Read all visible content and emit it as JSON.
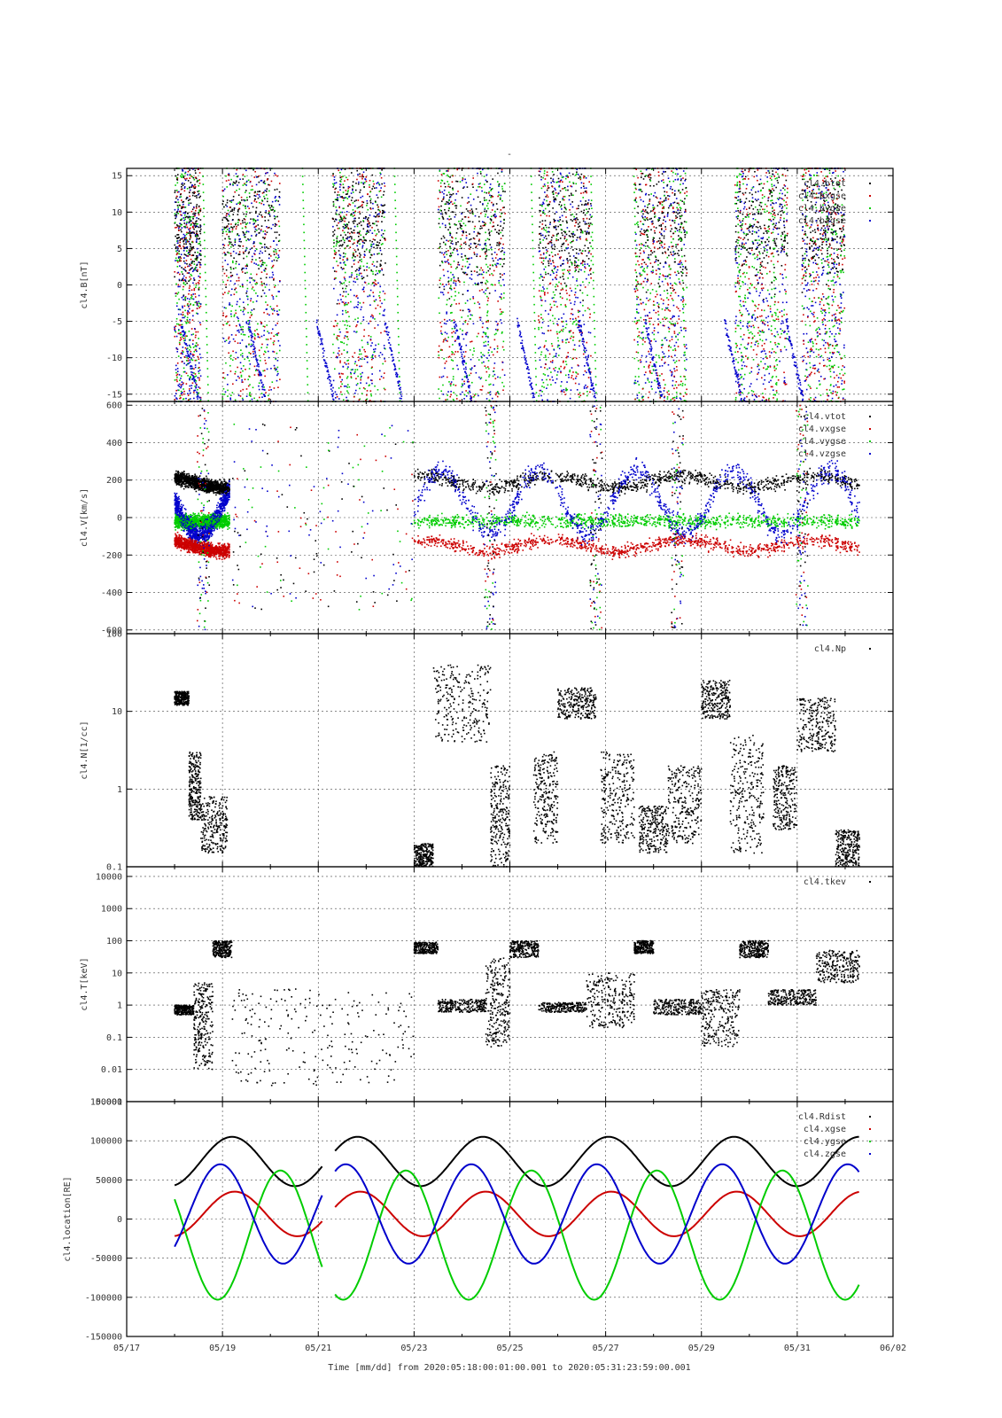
{
  "figure": {
    "top_mark": "-",
    "time_axis": {
      "ticks": [
        "05/17",
        "05/19",
        "05/21",
        "05/23",
        "05/25",
        "05/27",
        "05/29",
        "05/31",
        "06/02"
      ],
      "title": "Time [mm/dd]  from 2020:05:18:00:01:00.001  to  2020:05:31:23:59:00.001",
      "range_days": [
        0,
        16
      ]
    },
    "colors": {
      "black": "#000000",
      "red": "#cc0000",
      "green": "#00cc00",
      "blue": "#0000cc"
    }
  },
  "chart_data": [
    {
      "type": "scatter",
      "ylabel": "cl4.B[nT]",
      "ylim": [
        -16,
        16
      ],
      "yscale": "linear",
      "yticks": [
        "15",
        "10",
        "5",
        "0",
        "-5",
        "-10",
        "-15"
      ],
      "ytick_values": [
        15,
        10,
        5,
        0,
        -5,
        -10,
        -15
      ],
      "grid": true,
      "legend_placement": "top-right",
      "series": [
        {
          "name": "cl4.btot",
          "color": "#000000"
        },
        {
          "name": "cl4.bxgse",
          "color": "#cc0000"
        },
        {
          "name": "cl4.bygse",
          "color": "#00cc00"
        },
        {
          "name": "cl4.bzgse",
          "color": "#0000cc"
        }
      ]
    },
    {
      "type": "scatter",
      "ylabel": "cl4.V[km/s]",
      "ylim": [
        -620,
        620
      ],
      "yscale": "linear",
      "yticks": [
        "600",
        "400",
        "200",
        "0",
        "-200",
        "-400",
        "-600"
      ],
      "ytick_values": [
        600,
        400,
        200,
        0,
        -200,
        -400,
        -600
      ],
      "grid": true,
      "legend_placement": "top-right",
      "series": [
        {
          "name": "cl4.vtot",
          "color": "#000000"
        },
        {
          "name": "cl4.vxgse",
          "color": "#cc0000"
        },
        {
          "name": "cl4.vygse",
          "color": "#00cc00"
        },
        {
          "name": "cl4.vzgse",
          "color": "#0000cc"
        }
      ]
    },
    {
      "type": "scatter",
      "ylabel": "cl4.N[1/cc]",
      "ylim": [
        0.1,
        100
      ],
      "yscale": "log",
      "yticks": [
        "100",
        "10",
        "1",
        "0.1"
      ],
      "ytick_values": [
        100,
        10,
        1,
        0.1
      ],
      "grid": true,
      "legend_placement": "top-right",
      "series": [
        {
          "name": "cl4.Np",
          "color": "#000000"
        }
      ]
    },
    {
      "type": "scatter",
      "ylabel": "cl4.T[keV]",
      "ylim": [
        0.001,
        20000
      ],
      "yscale": "log",
      "yticks": [
        "10000",
        "1000",
        "100",
        "10",
        "1",
        "0.1",
        "0.01",
        "0.001"
      ],
      "ytick_values": [
        10000,
        1000,
        100,
        10,
        1,
        0.1,
        0.01,
        0.001
      ],
      "grid": true,
      "legend_placement": "top-right",
      "series": [
        {
          "name": "cl4.tkev",
          "color": "#000000"
        }
      ]
    },
    {
      "type": "line",
      "ylabel": "cl4.location[RE]",
      "ylim": [
        -150000,
        150000
      ],
      "yscale": "linear",
      "yticks": [
        "150000",
        "100000",
        "50000",
        "0",
        "-50000",
        "-100000",
        "-150000"
      ],
      "ytick_values": [
        150000,
        100000,
        50000,
        0,
        -50000,
        -100000,
        -150000
      ],
      "grid": true,
      "legend_placement": "top-right",
      "series": [
        {
          "name": "cl4.Rdist",
          "color": "#000000",
          "approx": "oscillates between 42000 and 105000, period ~2.7 days"
        },
        {
          "name": "cl4.xgse",
          "color": "#cc0000",
          "approx": "oscillates between -22000 and 35000"
        },
        {
          "name": "cl4.ygse",
          "color": "#00cc00",
          "approx": "oscillates between -103000 and 62000"
        },
        {
          "name": "cl4.zgse",
          "color": "#0000cc",
          "approx": "oscillates between -57000 and 70000"
        }
      ],
      "data_gap_days": [
        4.1,
        4.35
      ]
    }
  ]
}
